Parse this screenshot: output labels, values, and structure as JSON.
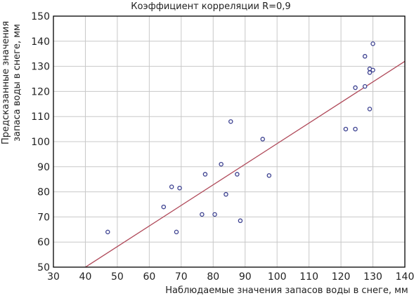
{
  "chart_data": {
    "type": "scatter",
    "title": "Коэффициент корреляции R=0,9",
    "xlabel": "Наблюдаемые значения запасов воды в снеге, мм",
    "ylabel_lines": [
      "Предсказанные значения",
      "запаса воды в снеге, мм"
    ],
    "xlim": [
      30,
      140
    ],
    "ylim": [
      50,
      150
    ],
    "xticks": [
      30,
      40,
      50,
      60,
      70,
      80,
      90,
      100,
      110,
      120,
      130,
      140
    ],
    "yticks": [
      50,
      60,
      70,
      80,
      90,
      100,
      110,
      120,
      130,
      140,
      150
    ],
    "grid": true,
    "series": [
      {
        "points": [
          [
            47,
            64
          ],
          [
            64.5,
            74
          ],
          [
            67,
            82
          ],
          [
            68.5,
            64
          ],
          [
            69.5,
            81.5
          ],
          [
            76.5,
            71
          ],
          [
            77.5,
            87
          ],
          [
            80.5,
            71
          ],
          [
            82.5,
            91
          ],
          [
            84,
            79
          ],
          [
            85.5,
            108
          ],
          [
            87.5,
            87
          ],
          [
            88.5,
            68.5
          ],
          [
            95.5,
            101
          ],
          [
            97.5,
            86.5
          ],
          [
            121.5,
            105
          ],
          [
            124.5,
            121.5
          ],
          [
            124.5,
            105
          ],
          [
            127.5,
            134
          ],
          [
            127.5,
            122
          ],
          [
            129,
            113
          ],
          [
            129,
            129
          ],
          [
            129,
            127.5
          ],
          [
            130,
            128.5
          ],
          [
            130,
            139
          ]
        ]
      }
    ],
    "fit_line": {
      "x": [
        40,
        140
      ],
      "y": [
        50,
        132
      ]
    },
    "colors": {
      "points": "#3a3f8f",
      "fit_line": "#b04a5a",
      "grid": "#c8c8c8",
      "axis": "#000000"
    }
  }
}
